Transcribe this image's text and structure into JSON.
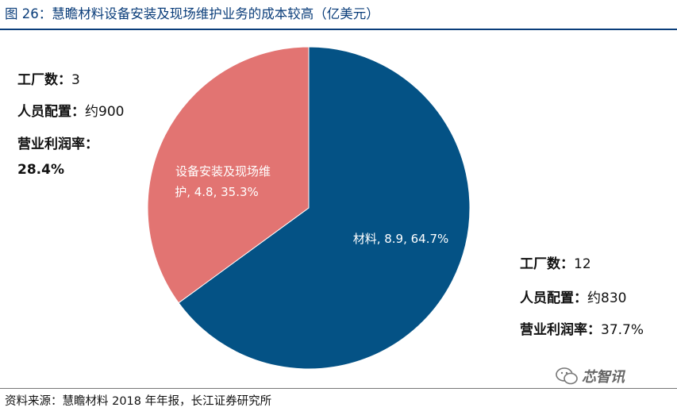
{
  "title": "图 26：慧瞻材料设备安装及现场维护业务的成本较高（亿美元）",
  "chart_data": {
    "type": "pie",
    "slices": [
      {
        "label": "材料",
        "value": 8.9,
        "percent": 64.7,
        "color": "#045285",
        "label_text": "材料, 8.9, 64.7%"
      },
      {
        "label": "设备安装及现场维护",
        "value": 4.8,
        "percent": 35.3,
        "color": "#e27472",
        "label_text_line1": "设备安装及现场维",
        "label_text_line2": "护, 4.8, 35.3%"
      }
    ]
  },
  "left_info": {
    "factories_label": "工厂数：",
    "factories_value": "3",
    "staff_label": "人员配置：",
    "staff_value": "约900",
    "margin_label": "营业利润率：",
    "margin_value": "28.4%"
  },
  "right_info": {
    "factories_label": "工厂数：",
    "factories_value": "12",
    "staff_label": "人员配置：",
    "staff_value": "约830",
    "margin_label": "营业利润率：",
    "margin_value": "37.7%"
  },
  "source": "资料来源：慧瞻材料 2018 年年报，长江证券研究所",
  "watermark": "芯智讯",
  "watermark_icon": "wechat-icon"
}
